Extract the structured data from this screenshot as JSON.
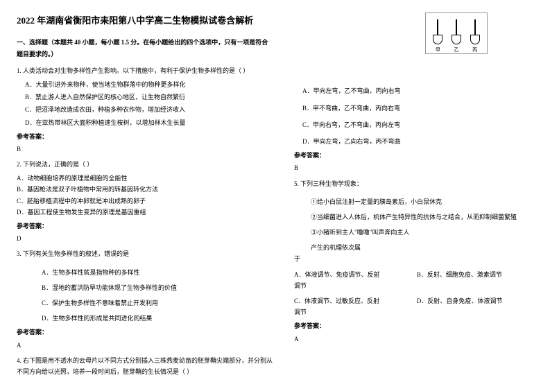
{
  "title": "2022 年湖南省衡阳市耒阳第八中学高二生物模拟试卷含解析",
  "section1": {
    "header": "一、选择题（本题共 40 小题，每小题 1.5 分。在每小题给出的四个选项中，只有一项是符合题目要求的。）"
  },
  "q1": {
    "text": "1. 人类活动会对生物多样性产生影响。以下措施中，有利于保护生物多样性的是（    ）",
    "a": "A．大量引进外来物种，使当地生物群落中的物种更多样化",
    "b": "B．禁止游人进入自然保护区的核心地区，让生物自然繁衍",
    "c": "C．把沼泽地改造成农田，种植多种农作物，增加经济收入",
    "d": "D．在亚热带林区大面积种植速生桉树，以增加林木生长量",
    "answer_label": "参考答案：",
    "answer": "B"
  },
  "q2": {
    "text": "2. 下列说法，正确的是（    ）",
    "a": "A．动物细胞培养的原理是细胞的全能性",
    "b": "B．基因枪法是双子叶植物中常用的转基因转化方法",
    "c": "C．胚胎移植流程中的冲卵就是冲出成熟的卵子",
    "d": "D．基因工程使生物发生变异的原理是基因重组",
    "answer_label": "参考答案：",
    "answer": "D"
  },
  "q3": {
    "text": "3. 下列有关生物多样性的叙述，错误的是",
    "a": "A．生物多样性就是指物种的多样性",
    "b": "B．湿地的蓄洪防旱功能体现了生物多样性的价值",
    "c": "C．保护生物多样性不意味着禁止开发利用",
    "d": "D．生物多样性的形成是共同进化的结果",
    "answer_label": "参考答案：",
    "answer": "A"
  },
  "q4": {
    "text": "4. 右下图是用不透水的云母片以不同方式分别插入三株燕麦幼苗的胚芽鞘尖端部分，并分别从不同方向给以光照，培养一段时间后，胚芽鞘的生长情况是（    ）",
    "a": "A．甲向左弯，乙不弯曲，丙向右弯",
    "b": "B．甲不弯曲，乙不弯曲，丙向右弯",
    "c": "C．甲向右弯，乙不弯曲，丙向左弯",
    "d": "D．甲向左弯，乙向右弯，丙不弯曲",
    "answer_label": "参考答案：",
    "answer": "B"
  },
  "q5": {
    "text": "5. 下列三种生物学现象：",
    "s1": "①给小白鼠注射一定量的胰岛素后，小白鼠休克",
    "s2": "②当细菌进入人体后，机体产生特异性的抗体与之结合，从而抑制细菌繁殖",
    "s3": "③小猪听到主人\"噜噜\"叫声奔向主人",
    "tail": "产生的机理依次属",
    "tail2": "于",
    "a": "A．体液调节、免疫调节、反射",
    "b": "B．反射、细胞免疫、激素调节",
    "c": "C．体液调节、过敏反应、反射",
    "d": "D．反射、自身免疫、体液调节",
    "answer_label": "参考答案：",
    "answer": "A"
  },
  "figure": {
    "labels": [
      "甲",
      "乙",
      "丙"
    ]
  }
}
